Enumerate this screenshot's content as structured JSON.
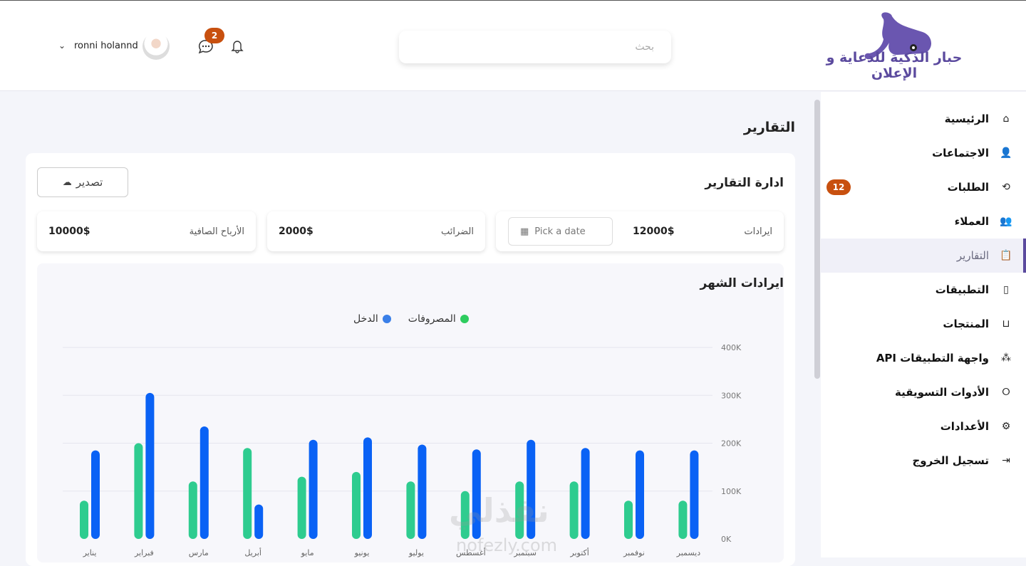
{
  "header": {
    "logo_text": "حبار الذكية للدعاية و الإعلان",
    "search_placeholder": "بحث",
    "messages_badge": "2",
    "user_name": "ronni holannd"
  },
  "sidebar": {
    "items": [
      {
        "label": "الرئيسية",
        "icon": "home-icon",
        "glyph": "⌂"
      },
      {
        "label": "الاجتماعات",
        "icon": "user-icon",
        "glyph": "👤"
      },
      {
        "label": "الطلبات",
        "icon": "chat-reply-icon",
        "glyph": "⟲",
        "badge": "12"
      },
      {
        "label": "العملاء",
        "icon": "users-icon",
        "glyph": "👥"
      },
      {
        "label": "التقارير",
        "icon": "report-icon",
        "glyph": "📋",
        "active": true
      },
      {
        "label": "التطبيقات",
        "icon": "mobile-app-icon",
        "glyph": "▯"
      },
      {
        "label": "المنتجات",
        "icon": "bag-icon",
        "glyph": "⊔"
      },
      {
        "label": "واجهة التطبيقات API",
        "icon": "cubes-icon",
        "glyph": "⁂"
      },
      {
        "label": "الأدوات التسويقية",
        "icon": "circle-icon",
        "glyph": "⭘"
      },
      {
        "label": "الأعدادات",
        "icon": "gear-icon",
        "glyph": "⚙"
      },
      {
        "label": "تسجيل الخروج",
        "icon": "logout-icon",
        "glyph": "⇥"
      }
    ]
  },
  "main": {
    "page_title": "التقارير",
    "card_title": "ادارة التقارير",
    "export_label": "تصدير",
    "stats": [
      {
        "label": "ايرادات",
        "value": "12000$"
      },
      {
        "label": "الضرائب",
        "value": "2000$"
      },
      {
        "label": "الأرباح الصافية",
        "value": "10000$"
      }
    ],
    "date_placeholder": "Pick a date",
    "chart_title": "ايرادات الشهر"
  },
  "watermark": {
    "text": "نفذلي",
    "url": "nofezly.com"
  },
  "chart_data": {
    "type": "bar",
    "categories": [
      "يناير",
      "فبراير",
      "مارس",
      "أبريل",
      "مايو",
      "يونيو",
      "يوليو",
      "أغسطس",
      "سبتمبر",
      "أكتوبر",
      "نوفمبر",
      "ديسمبر"
    ],
    "series": [
      {
        "name": "المصروفات",
        "color": "#2ecc8f",
        "values": [
          80000,
          200000,
          120000,
          190000,
          130000,
          140000,
          120000,
          100000,
          120000,
          120000,
          80000,
          80000
        ]
      },
      {
        "name": "الدخل",
        "color": "#0a62f5",
        "values": [
          185000,
          305000,
          235000,
          72000,
          207000,
          212000,
          197000,
          187000,
          207000,
          190000,
          185000,
          185000
        ]
      }
    ],
    "y_ticks": [
      "0K",
      "100K",
      "200K",
      "300K",
      "400K"
    ],
    "ylim": [
      0,
      400000
    ],
    "y_axis_side": "right",
    "grid": true,
    "legend": "top-center"
  }
}
